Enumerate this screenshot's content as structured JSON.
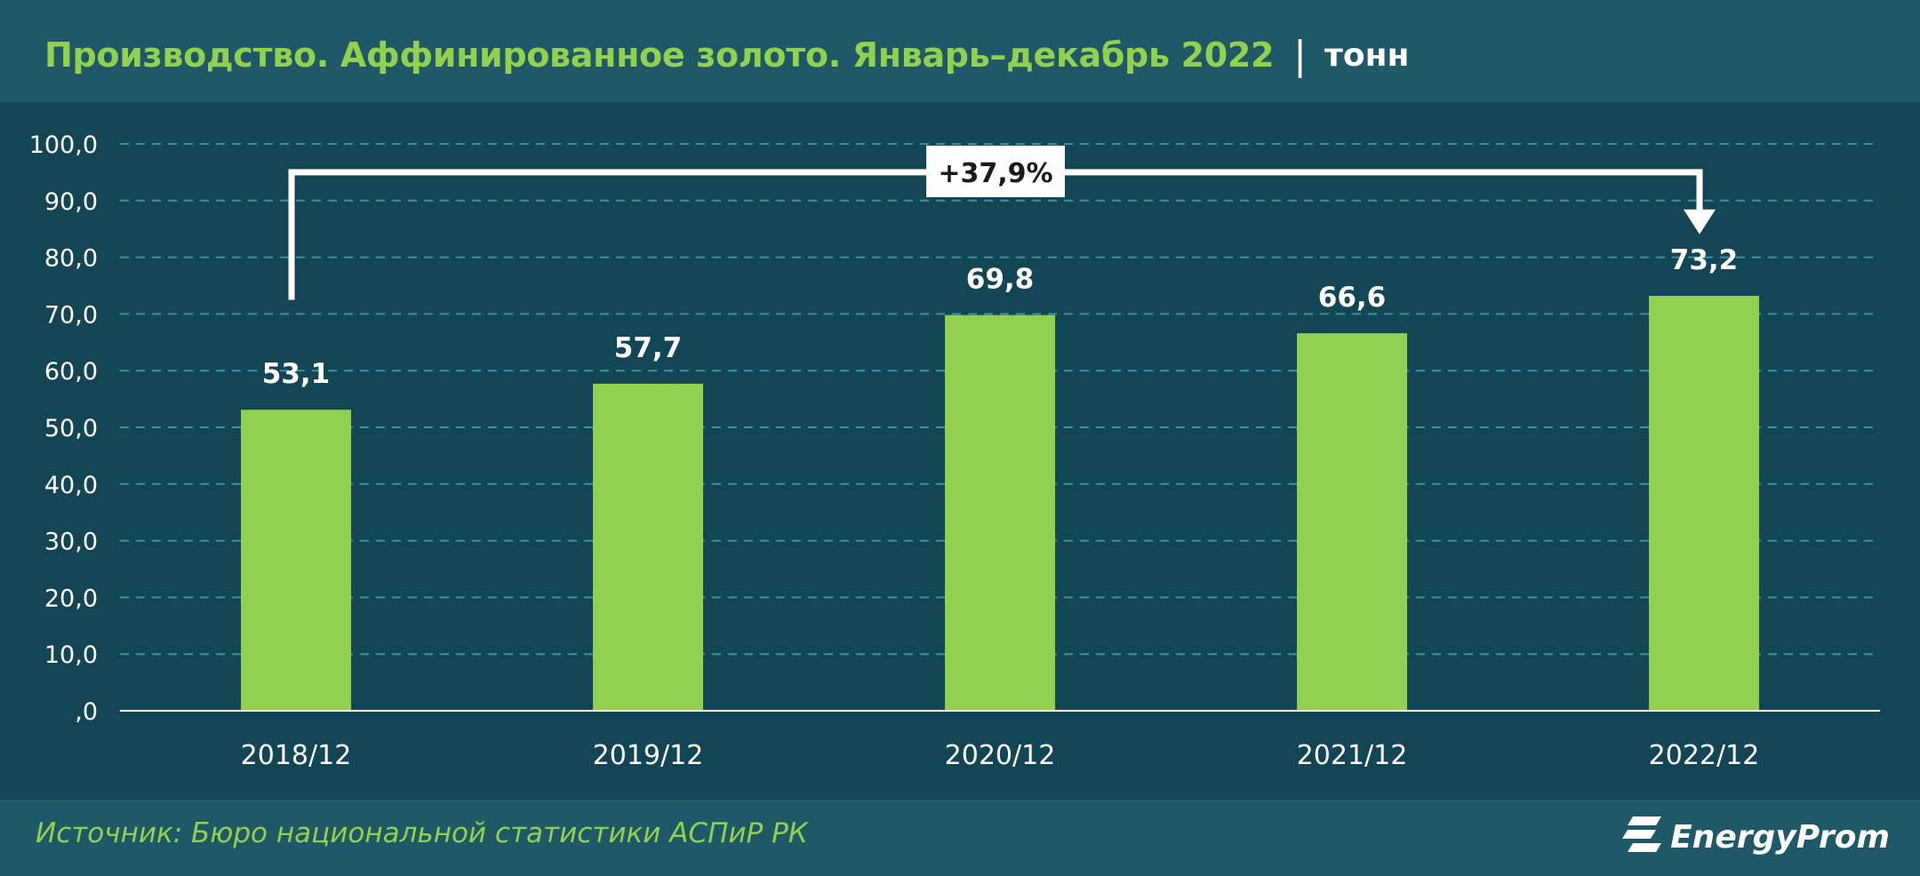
{
  "header": {
    "title": "Производство. Аффинированное золото. Январь–декабрь 2022",
    "separator": "|",
    "unit": "тонн"
  },
  "footer": {
    "source": "Источник: Бюро национальной статистики АСПиР РК",
    "logo": "EnergyProm"
  },
  "chart_data": {
    "type": "bar",
    "title": "Производство. Аффинированное золото. Январь–декабрь 2022",
    "categories": [
      "2018/12",
      "2019/12",
      "2020/12",
      "2021/12",
      "2022/12"
    ],
    "values": [
      53.1,
      57.7,
      69.8,
      66.6,
      73.2
    ],
    "value_labels": [
      "53,1",
      "57,7",
      "69,8",
      "66,6",
      "73,2"
    ],
    "y_ticks": [
      ",0",
      "10,0",
      "20,0",
      "30,0",
      "40,0",
      "50,0",
      "60,0",
      "70,0",
      "80,0",
      "90,0",
      "100,0"
    ],
    "ylim": [
      0,
      100
    ],
    "grid": true,
    "annotation": {
      "text": "+37,9%",
      "from": "2018/12",
      "to": "2022/12"
    },
    "colors": {
      "bar": "#92d050",
      "grid": "#3f8f9f",
      "text": "#ffffff"
    }
  }
}
